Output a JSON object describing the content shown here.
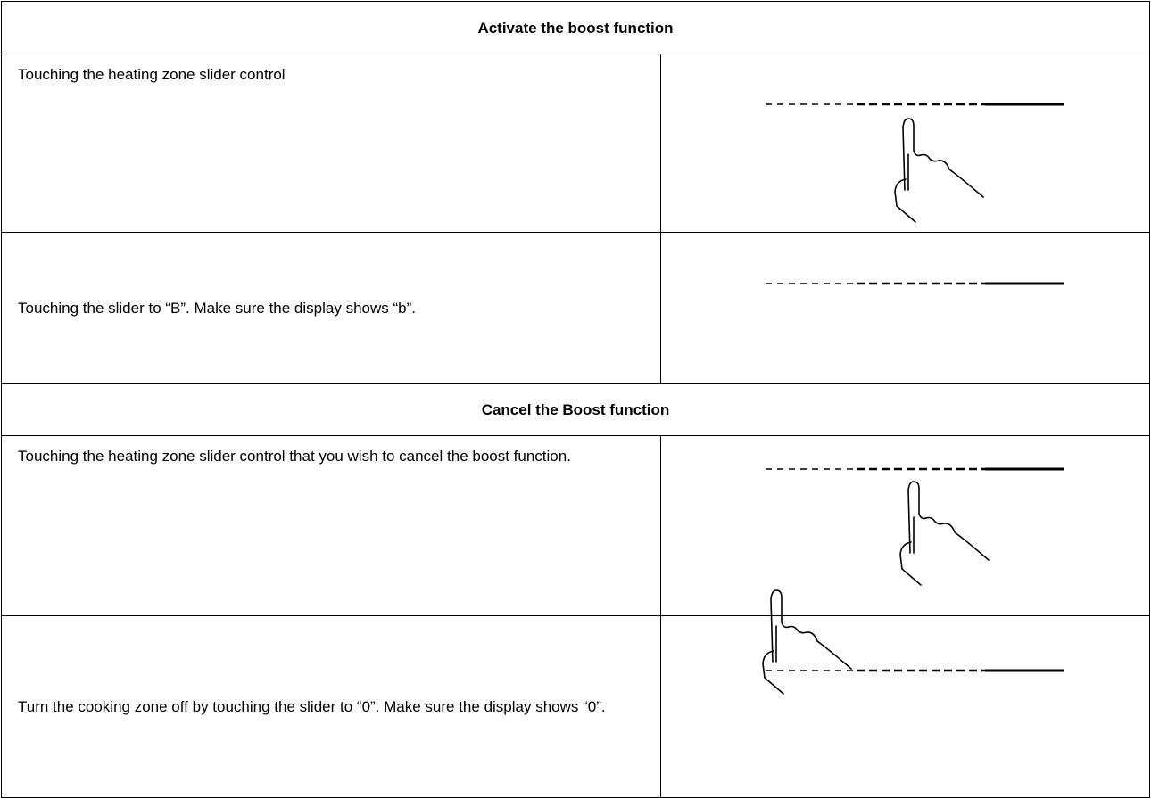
{
  "table": {
    "rows": [
      [
        "Activate the boost function"
      ],
      [
        "Touching the heating zone slider control"
      ],
      [
        "Touching the slider to “B”. Make sure the display shows “b”."
      ],
      [
        "Cancel the Boost function"
      ],
      [
        "Touching the heating zone slider control that you wish to cancel the boost function."
      ],
      [
        "Turn the cooking zone off by touching the slider to “0”. Make sure the display shows “0”."
      ]
    ]
  }
}
